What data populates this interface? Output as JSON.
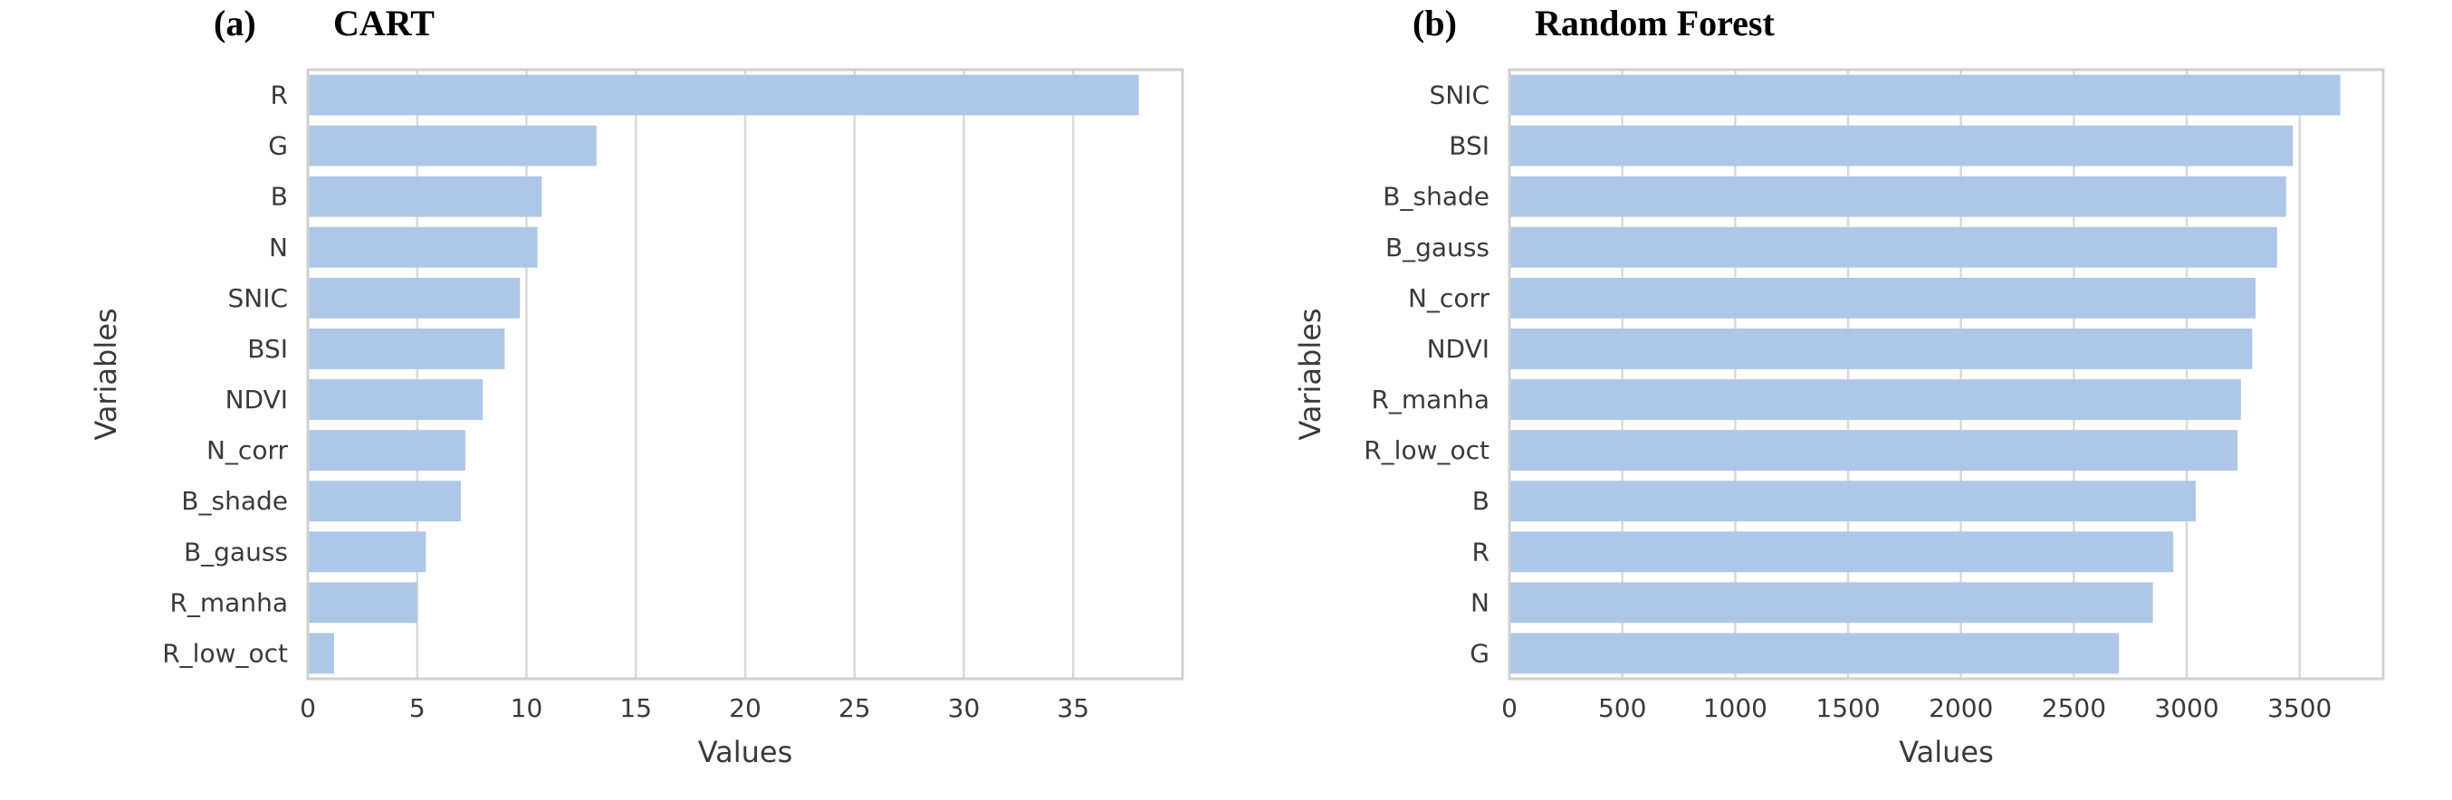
{
  "panels": [
    {
      "letter": "(a)",
      "title": "CART"
    },
    {
      "letter": "(b)",
      "title": "Random Forest"
    }
  ],
  "chart_data": [
    {
      "type": "bar",
      "orientation": "horizontal",
      "title": "CART",
      "xlabel": "Values",
      "ylabel": "Variables",
      "categories": [
        "R",
        "G",
        "B",
        "N",
        "SNIC",
        "BSI",
        "NDVI",
        "N_corr",
        "B_shade",
        "B_gauss",
        "R_manha",
        "R_low_oct"
      ],
      "values": [
        38.0,
        13.2,
        10.7,
        10.5,
        9.7,
        9.0,
        8.0,
        7.2,
        7.0,
        5.4,
        5.0,
        1.2
      ],
      "xlim": [
        0,
        40
      ],
      "xticks": [
        0,
        5,
        10,
        15,
        20,
        25,
        30,
        35
      ],
      "grid": "vertical",
      "bar_color": "#aec7e8"
    },
    {
      "type": "bar",
      "orientation": "horizontal",
      "title": "Random Forest",
      "xlabel": "Values",
      "ylabel": "Variables",
      "categories": [
        "SNIC",
        "BSI",
        "B_shade",
        "B_gauss",
        "N_corr",
        "NDVI",
        "R_manha",
        "R_low_oct",
        "B",
        "R",
        "N",
        "G"
      ],
      "values": [
        3680,
        3470,
        3440,
        3400,
        3305,
        3290,
        3240,
        3225,
        3040,
        2940,
        2850,
        2700
      ],
      "xlim": [
        0,
        3870
      ],
      "xticks": [
        0,
        500,
        1000,
        1500,
        2000,
        2500,
        3000,
        3500
      ],
      "grid": "vertical",
      "bar_color": "#aec7e8"
    }
  ]
}
